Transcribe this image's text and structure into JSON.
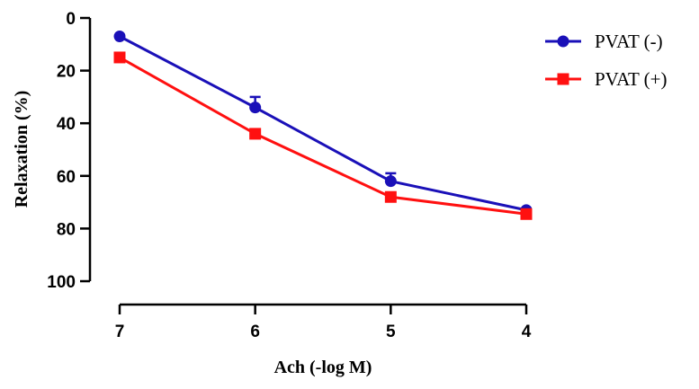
{
  "chart_data": {
    "type": "line",
    "title": "",
    "xlabel": "Ach (-log M)",
    "ylabel": "Relaxation (%)",
    "x": [
      7,
      6,
      5,
      4
    ],
    "x_ticks": [
      "7",
      "6",
      "5",
      "4"
    ],
    "y_ticks": [
      "0",
      "20",
      "40",
      "60",
      "80",
      "100"
    ],
    "ylim": [
      0,
      100
    ],
    "y_inverted": true,
    "grid": false,
    "legend_position": "top-right",
    "series": [
      {
        "name": "PVAT (-)",
        "color": "#1a10b8",
        "marker": "circle",
        "values": [
          7,
          34,
          62,
          73
        ],
        "error": [
          0,
          4,
          3,
          0
        ]
      },
      {
        "name": "PVAT (+)",
        "color": "#ff1010",
        "marker": "square",
        "values": [
          15,
          44,
          68,
          74.5
        ],
        "error": [
          1,
          1,
          0,
          0
        ]
      }
    ]
  }
}
